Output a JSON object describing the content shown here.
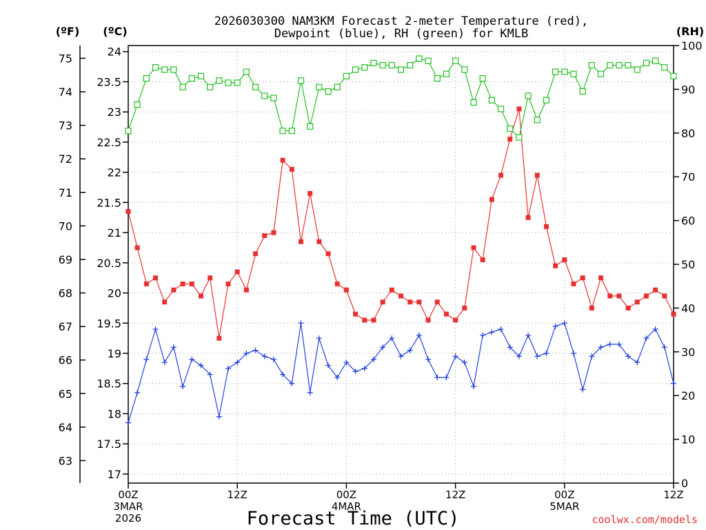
{
  "chart_data": {
    "type": "line",
    "title_line1": "2026030300 NAM3KM Forecast 2-meter Temperature (red),",
    "title_line2": "Dewpoint (blue), RH (green) for KMLB",
    "left_outer_unit": "(ºF)",
    "left_inner_unit": "(ºC)",
    "right_unit": "(RH)",
    "xlabel": "Forecast Time (UTC)",
    "credit": "coolwx.com/models",
    "x_range_hours": [
      0,
      60
    ],
    "celsius_range": [
      16.85,
      24.1
    ],
    "rh_range": [
      0,
      100
    ],
    "fahrenheit_ticks": [
      "63",
      "64",
      "65",
      "66",
      "67",
      "68",
      "69",
      "70",
      "71",
      "72",
      "73",
      "74",
      "75"
    ],
    "celsius_ticks": [
      "17",
      "17.5",
      "18",
      "18.5",
      "19",
      "19.5",
      "20",
      "20.5",
      "21",
      "21.5",
      "22",
      "22.5",
      "23",
      "23.5",
      "24"
    ],
    "rh_ticks": [
      "0",
      "10",
      "20",
      "30",
      "40",
      "50",
      "60",
      "70",
      "80",
      "90",
      "100"
    ],
    "x_ticks": [
      {
        "hour": 0,
        "label": "00Z",
        "sub1": "3MAR",
        "sub2": "2026"
      },
      {
        "hour": 12,
        "label": "12Z",
        "sub1": "",
        "sub2": ""
      },
      {
        "hour": 24,
        "label": "00Z",
        "sub1": "4MAR",
        "sub2": ""
      },
      {
        "hour": 36,
        "label": "12Z",
        "sub1": "",
        "sub2": ""
      },
      {
        "hour": 48,
        "label": "00Z",
        "sub1": "5MAR",
        "sub2": ""
      },
      {
        "hour": 60,
        "label": "12Z",
        "sub1": "",
        "sub2": ""
      }
    ],
    "x_hours": [
      0,
      1,
      2,
      3,
      4,
      5,
      6,
      7,
      8,
      9,
      10,
      11,
      12,
      13,
      14,
      15,
      16,
      17,
      18,
      19,
      20,
      21,
      22,
      23,
      24,
      25,
      26,
      27,
      28,
      29,
      30,
      31,
      32,
      33,
      34,
      35,
      36,
      37,
      38,
      39,
      40,
      41,
      42,
      43,
      44,
      45,
      46,
      47,
      48,
      49,
      50,
      51,
      52,
      53,
      54,
      55,
      56,
      57,
      58,
      59,
      60
    ],
    "series": [
      {
        "name": "Temperature",
        "unit": "C",
        "color": "#e83030",
        "marker": "filled-square",
        "values": [
          21.35,
          20.75,
          20.15,
          20.25,
          19.85,
          20.05,
          20.15,
          20.15,
          19.95,
          20.25,
          19.25,
          20.15,
          20.35,
          20.05,
          20.65,
          20.95,
          21.0,
          22.2,
          22.05,
          20.85,
          21.65,
          20.85,
          20.65,
          20.15,
          20.05,
          19.65,
          19.55,
          19.55,
          19.85,
          20.05,
          19.95,
          19.85,
          19.85,
          19.55,
          19.85,
          19.65,
          19.55,
          19.75,
          20.75,
          20.55,
          21.55,
          21.95,
          22.55,
          23.05,
          21.25,
          21.95,
          21.1,
          20.45,
          20.55,
          20.15,
          20.25,
          19.75,
          20.25,
          19.95,
          19.95,
          19.75,
          19.85,
          19.95,
          20.05,
          19.95,
          19.65
        ]
      },
      {
        "name": "Dewpoint",
        "unit": "C",
        "color": "#2040e0",
        "marker": "plus",
        "values": [
          17.85,
          18.35,
          18.9,
          19.4,
          18.85,
          19.1,
          18.45,
          18.9,
          18.8,
          18.65,
          17.95,
          18.75,
          18.85,
          19.0,
          19.05,
          18.95,
          18.9,
          18.65,
          18.5,
          19.5,
          18.35,
          19.25,
          18.8,
          18.6,
          18.85,
          18.7,
          18.75,
          18.9,
          19.1,
          19.25,
          18.95,
          19.05,
          19.3,
          18.9,
          18.6,
          18.6,
          18.95,
          18.85,
          18.45,
          19.3,
          19.35,
          19.4,
          19.1,
          18.95,
          19.3,
          18.95,
          19.0,
          19.45,
          19.5,
          19.0,
          18.4,
          18.95,
          19.1,
          19.15,
          19.15,
          18.95,
          18.85,
          19.25,
          19.4,
          19.1,
          18.5
        ]
      },
      {
        "name": "RH",
        "unit": "%",
        "color": "#20c020",
        "marker": "open-square",
        "values": [
          80.5,
          86.5,
          92.5,
          95,
          94.5,
          94.5,
          90.5,
          92.5,
          93,
          90.5,
          92,
          91.5,
          91.5,
          94,
          90.5,
          88.5,
          88,
          80.5,
          80.5,
          92,
          81.5,
          90.5,
          89.5,
          90.5,
          93,
          94.5,
          95,
          96,
          95.5,
          95.5,
          94.5,
          95.5,
          97,
          96.5,
          92.5,
          93.5,
          96.5,
          94.5,
          87,
          92.5,
          87.5,
          85.5,
          81,
          79,
          88.5,
          83,
          87.5,
          94,
          94,
          93.5,
          89.5,
          95.5,
          93.5,
          95.5,
          95.5,
          95.5,
          94.5,
          96,
          96.5,
          95,
          93
        ]
      }
    ]
  }
}
